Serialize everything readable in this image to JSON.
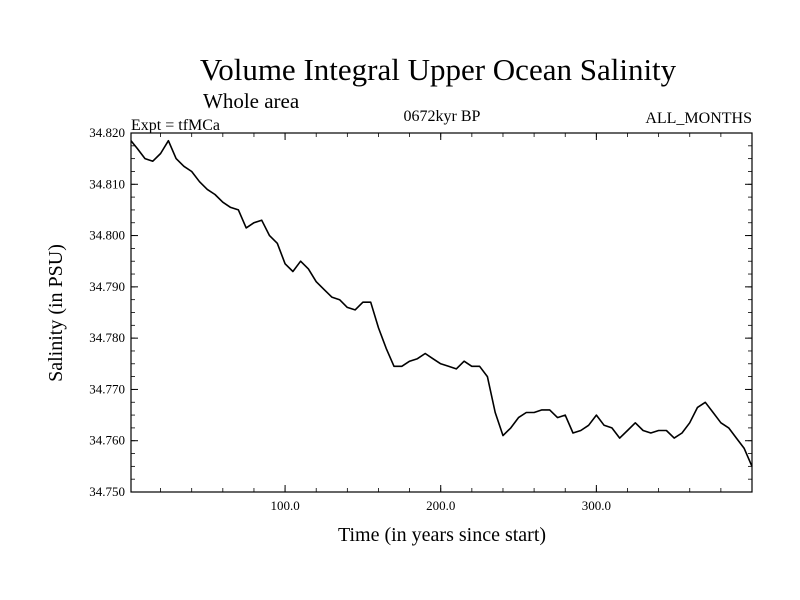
{
  "chart_data": {
    "type": "line",
    "title": "Volume Integral Upper Ocean Salinity",
    "subtitle": "Whole area",
    "annotations": {
      "experiment": "Expt = tfMCa",
      "period": "0672kyr BP",
      "months": "ALL_MONTHS"
    },
    "xlabel": "Time (in years since start)",
    "ylabel": "Salinity (in PSU)",
    "xlim": [
      1,
      400
    ],
    "ylim": [
      34.75,
      34.82
    ],
    "x_ticks": [
      {
        "value": 100,
        "label": "100.0"
      },
      {
        "value": 200,
        "label": "200.0"
      },
      {
        "value": 300,
        "label": "300.0"
      }
    ],
    "y_ticks": [
      {
        "value": 34.75,
        "label": "34.750"
      },
      {
        "value": 34.76,
        "label": "34.760"
      },
      {
        "value": 34.77,
        "label": "34.770"
      },
      {
        "value": 34.78,
        "label": "34.780"
      },
      {
        "value": 34.79,
        "label": "34.790"
      },
      {
        "value": 34.8,
        "label": "34.800"
      },
      {
        "value": 34.81,
        "label": "34.810"
      },
      {
        "value": 34.82,
        "label": "34.820"
      }
    ],
    "grid": false,
    "legend": "none",
    "line_color": "#000000",
    "x": [
      1,
      5,
      10,
      15,
      20,
      25,
      30,
      35,
      40,
      45,
      50,
      55,
      60,
      65,
      70,
      75,
      80,
      85,
      90,
      95,
      100,
      105,
      110,
      115,
      120,
      125,
      130,
      135,
      140,
      145,
      150,
      155,
      160,
      165,
      170,
      175,
      180,
      185,
      190,
      195,
      200,
      205,
      210,
      215,
      220,
      225,
      230,
      235,
      240,
      245,
      250,
      255,
      260,
      265,
      270,
      275,
      280,
      285,
      290,
      295,
      300,
      305,
      310,
      315,
      320,
      325,
      330,
      335,
      340,
      345,
      350,
      355,
      360,
      365,
      370,
      375,
      380,
      385,
      390,
      395,
      400
    ],
    "values": [
      34.8185,
      34.817,
      34.815,
      34.8145,
      34.816,
      34.8185,
      34.815,
      34.8135,
      34.8125,
      34.8105,
      34.809,
      34.808,
      34.8065,
      34.8055,
      34.805,
      34.8015,
      34.8025,
      34.803,
      34.8,
      34.7985,
      34.7945,
      34.793,
      34.795,
      34.7935,
      34.791,
      34.7895,
      34.788,
      34.7875,
      34.786,
      34.7855,
      34.787,
      34.787,
      34.782,
      34.778,
      34.7745,
      34.7745,
      34.7755,
      34.776,
      34.777,
      34.776,
      34.775,
      34.7745,
      34.774,
      34.7755,
      34.7745,
      34.7745,
      34.7725,
      34.7655,
      34.761,
      34.7625,
      34.7645,
      34.7655,
      34.7655,
      34.766,
      34.766,
      34.7645,
      34.765,
      34.7615,
      34.762,
      34.763,
      34.765,
      34.763,
      34.7625,
      34.7605,
      34.762,
      34.7635,
      34.762,
      34.7615,
      34.762,
      34.762,
      34.7605,
      34.7615,
      34.7635,
      34.7665,
      34.7675,
      34.7655,
      34.7635,
      34.7625,
      34.7605,
      34.7585,
      34.755
    ]
  }
}
